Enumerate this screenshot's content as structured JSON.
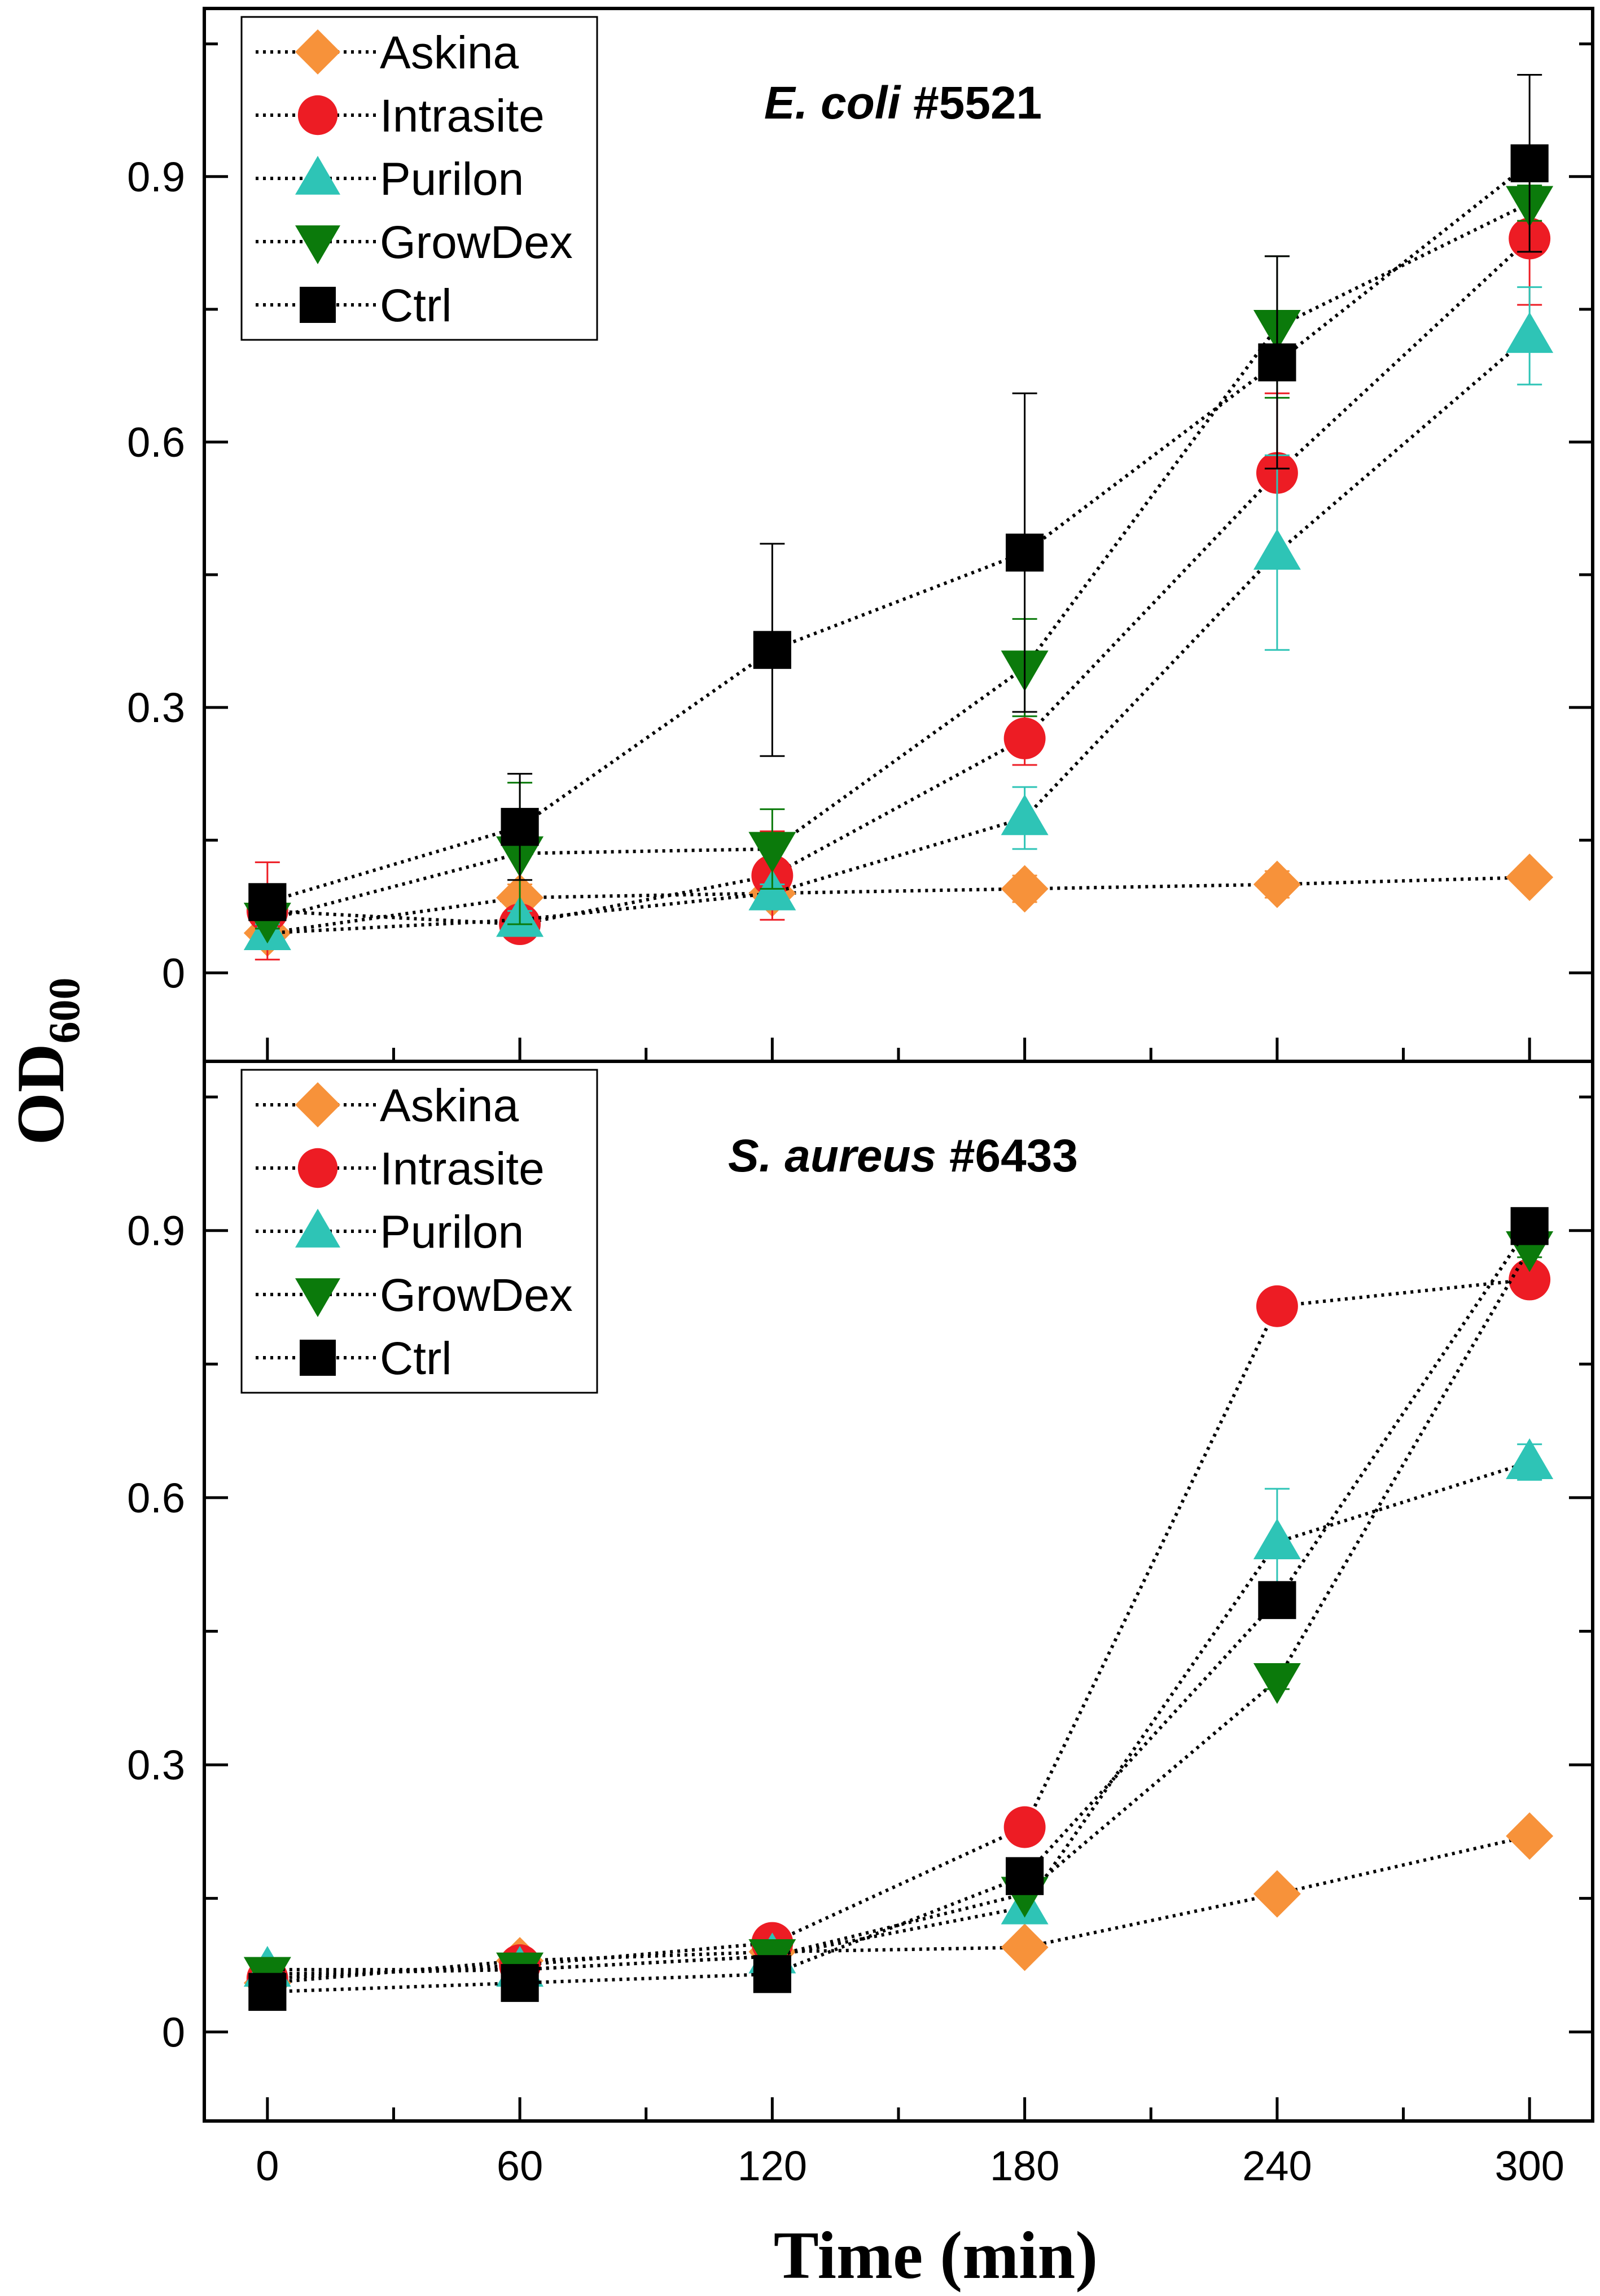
{
  "chart_data": {
    "type": "line",
    "xlabel": "Time (min)",
    "ylabel": "OD",
    "ylabel_subscript": "600",
    "xlim": [
      -15,
      315
    ],
    "x_ticks": [
      0,
      60,
      120,
      180,
      240,
      300
    ],
    "x_tick_labels": [
      "0",
      "60",
      "120",
      "180",
      "240",
      "300"
    ],
    "legend_position": "top-left",
    "series_styles": [
      {
        "name": "Askina",
        "marker": "diamond",
        "color": "#F7923A"
      },
      {
        "name": "Intrasite",
        "marker": "circle",
        "color": "#ED1C24"
      },
      {
        "name": "Purilon",
        "marker": "triangle-up",
        "color": "#2EC4B6"
      },
      {
        "name": "GrowDex",
        "marker": "triangle-down",
        "color": "#0B7A0B"
      },
      {
        "name": "Ctrl",
        "marker": "square",
        "color": "#000000"
      }
    ],
    "panels": [
      {
        "title_italic": "E. coli",
        "title_rest": " #5521",
        "ylim": [
          -0.1,
          1.09
        ],
        "y_ticks": [
          0,
          0.3,
          0.6,
          0.9
        ],
        "y_tick_labels": [
          "0",
          "0.3",
          "0.6",
          "0.9"
        ],
        "x": [
          0,
          60,
          120,
          180,
          240,
          300
        ],
        "series": [
          {
            "name": "Askina",
            "values": [
              0.045,
              0.085,
              0.09,
              0.095,
              0.1,
              0.108
            ],
            "errors": [
              0.012,
              0.015,
              0.015,
              0.015,
              0.015,
              0.012
            ]
          },
          {
            "name": "Intrasite",
            "values": [
              0.07,
              0.055,
              0.11,
              0.265,
              0.565,
              0.83
            ],
            "errors": [
              0.055,
              0.015,
              0.05,
              0.03,
              0.09,
              0.075
            ]
          },
          {
            "name": "Purilon",
            "values": [
              0.045,
              0.06,
              0.09,
              0.175,
              0.475,
              0.72
            ],
            "errors": [
              0.01,
              0.01,
              0.01,
              0.035,
              0.11,
              0.055
            ]
          },
          {
            "name": "GrowDex",
            "values": [
              0.06,
              0.135,
              0.14,
              0.345,
              0.73,
              0.87
            ],
            "errors": [
              0.01,
              0.08,
              0.045,
              0.055,
              0.08,
              0.02
            ]
          },
          {
            "name": "Ctrl",
            "values": [
              0.08,
              0.165,
              0.365,
              0.475,
              0.69,
              0.915
            ],
            "errors": [
              0.02,
              0.06,
              0.12,
              0.18,
              0.12,
              0.1
            ]
          }
        ]
      },
      {
        "title_italic": "S. aureus",
        "title_rest": " #6433",
        "ylim": [
          -0.1,
          1.09
        ],
        "y_ticks": [
          0,
          0.3,
          0.6,
          0.9
        ],
        "y_tick_labels": [
          "0",
          "0.3",
          "0.6",
          "0.9"
        ],
        "x": [
          0,
          60,
          120,
          180,
          240,
          300
        ],
        "series": [
          {
            "name": "Askina",
            "values": [
              0.055,
              0.08,
              0.09,
              0.095,
              0.155,
              0.22
            ],
            "errors": [
              0,
              0,
              0,
              0,
              0,
              0
            ]
          },
          {
            "name": "Intrasite",
            "values": [
              0.06,
              0.075,
              0.1,
              0.23,
              0.815,
              0.845
            ],
            "errors": [
              0,
              0,
              0,
              0,
              0,
              0
            ]
          },
          {
            "name": "Purilon",
            "values": [
              0.07,
              0.07,
              0.085,
              0.14,
              0.55,
              0.64
            ],
            "errors": [
              0,
              0,
              0,
              0,
              0.06,
              0.02
            ]
          },
          {
            "name": "GrowDex",
            "values": [
              0.065,
              0.07,
              0.085,
              0.155,
              0.395,
              0.88
            ],
            "errors": [
              0,
              0,
              0,
              0,
              0.01,
              0.01
            ]
          },
          {
            "name": "Ctrl",
            "values": [
              0.045,
              0.055,
              0.065,
              0.175,
              0.485,
              0.905
            ],
            "errors": [
              0,
              0,
              0,
              0,
              0,
              0
            ]
          }
        ]
      }
    ]
  }
}
